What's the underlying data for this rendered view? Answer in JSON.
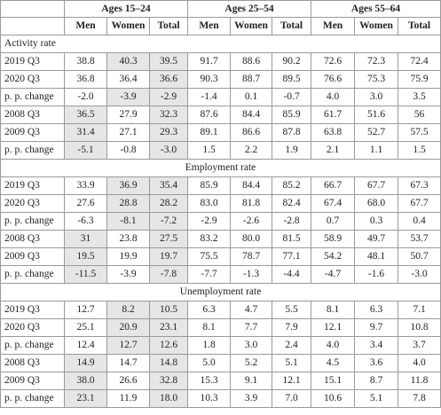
{
  "header": {
    "groups": [
      "Ages 15–24",
      "Ages 25–54",
      "Ages 55–64"
    ],
    "subcolumns": [
      "Men",
      "Women",
      "Total"
    ]
  },
  "shading": {
    "color": "#e6e6e6"
  },
  "sections": [
    {
      "title": "Activity rate",
      "title_align": "left",
      "rows": [
        {
          "label": "2019 Q3",
          "values": [
            "38.8",
            "40.3",
            "39.5",
            "91.7",
            "88.6",
            "90.2",
            "72.6",
            "72.3",
            "72.4"
          ],
          "shaded": [
            1,
            2
          ]
        },
        {
          "label": "2020 Q3",
          "values": [
            "36.8",
            "36.4",
            "36.6",
            "90.3",
            "88.7",
            "89.5",
            "76.6",
            "75.3",
            "75.9"
          ],
          "shaded": [
            2
          ]
        },
        {
          "label": "p. p. change",
          "values": [
            "-2.0",
            "-3.9",
            "-2.9",
            "-1.4",
            "0.1",
            "-0.7",
            "4.0",
            "3.0",
            "3.5"
          ],
          "shaded": [
            1,
            2
          ]
        },
        {
          "label": "2008 Q3",
          "values": [
            "36.5",
            "27.9",
            "32.3",
            "87.6",
            "84.4",
            "85.9",
            "61.7",
            "51.6",
            "56"
          ],
          "shaded": [
            0,
            2
          ]
        },
        {
          "label": "2009 Q3",
          "values": [
            "31.4",
            "27.1",
            "29.3",
            "89.1",
            "86.6",
            "87.8",
            "63.8",
            "52.7",
            "57.5"
          ],
          "shaded": [
            0,
            2
          ]
        },
        {
          "label": "p. p. change",
          "values": [
            "-5.1",
            "-0.8",
            "-3.0",
            "1.5",
            "2.2",
            "1.9",
            "2.1",
            "1.1",
            "1.5"
          ],
          "shaded": [
            0,
            2
          ]
        }
      ]
    },
    {
      "title": "Employment rate",
      "title_align": "center",
      "rows": [
        {
          "label": "2019 Q3",
          "values": [
            "33.9",
            "36.9",
            "35.4",
            "85.9",
            "84.4",
            "85.2",
            "66.7",
            "67.7",
            "67.3"
          ],
          "shaded": [
            1,
            2
          ]
        },
        {
          "label": "2020 Q3",
          "values": [
            "27.6",
            "28.8",
            "28.2",
            "83.0",
            "81.8",
            "82.4",
            "67.4",
            "68.0",
            "67.7"
          ],
          "shaded": [
            1,
            2
          ]
        },
        {
          "label": "p. p. change",
          "values": [
            "-6.3",
            "-8.1",
            "-7.2",
            "-2.9",
            "-2.6",
            "-2.8",
            "0.7",
            "0.3",
            "0.4"
          ],
          "shaded": [
            1,
            2
          ]
        },
        {
          "label": "2008 Q3",
          "values": [
            "31",
            "23.8",
            "27.5",
            "83.2",
            "80.0",
            "81.5",
            "58.9",
            "49.7",
            "53.7"
          ],
          "shaded": [
            0,
            2
          ]
        },
        {
          "label": "2009 Q3",
          "values": [
            "19.5",
            "19.9",
            "19.7",
            "75.5",
            "78.7",
            "77.1",
            "54.2",
            "48.1",
            "50.7"
          ],
          "shaded": [
            0,
            2
          ]
        },
        {
          "label": "p. p. change",
          "values": [
            "-11.5",
            "-3.9",
            "-7.8",
            "-7.7",
            "-1.3",
            "-4.4",
            "-4.7",
            "-1.6",
            "-3.0"
          ],
          "shaded": [
            0,
            2
          ]
        }
      ]
    },
    {
      "title": "Unemployment rate",
      "title_align": "center",
      "rows": [
        {
          "label": "2019 Q3",
          "values": [
            "12.7",
            "8.2",
            "10.5",
            "6.3",
            "4.7",
            "5.5",
            "8.1",
            "6.3",
            "7.1"
          ],
          "shaded": [
            1,
            2
          ]
        },
        {
          "label": "2020 Q3",
          "values": [
            "25.1",
            "20.9",
            "23.1",
            "8.1",
            "7.7",
            "7.9",
            "12.1",
            "9.7",
            "10.8"
          ],
          "shaded": [
            1,
            2
          ]
        },
        {
          "label": "p. p. change",
          "values": [
            "12.4",
            "12.7",
            "12.6",
            "1.8",
            "3.0",
            "2.4",
            "4.0",
            "3.4",
            "3.7"
          ],
          "shaded": [
            1,
            2
          ]
        },
        {
          "label": "2008 Q3",
          "values": [
            "14.9",
            "14.7",
            "14.8",
            "5.0",
            "5.2",
            "5.1",
            "4.5",
            "3.6",
            "4.0"
          ],
          "shaded": [
            0,
            2
          ]
        },
        {
          "label": "2009 Q3",
          "values": [
            "38.0",
            "26.6",
            "32.8",
            "15.3",
            "9.1",
            "12.1",
            "15.1",
            "8.7",
            "11.8"
          ],
          "shaded": [
            0,
            2
          ]
        },
        {
          "label": "p. p. change",
          "values": [
            "23.1",
            "11.9",
            "18.0",
            "10.3",
            "3.9",
            "7.0",
            "10.6",
            "5.1",
            "7.8"
          ],
          "shaded": [
            0,
            2
          ]
        }
      ]
    }
  ]
}
